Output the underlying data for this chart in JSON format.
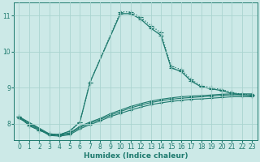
{
  "xlabel": "Humidex (Indice chaleur)",
  "xlim": [
    -0.5,
    23.5
  ],
  "ylim": [
    7.55,
    11.35
  ],
  "yticks": [
    8,
    9,
    10,
    11
  ],
  "xticks": [
    0,
    1,
    2,
    3,
    4,
    5,
    6,
    7,
    8,
    9,
    10,
    11,
    12,
    13,
    14,
    15,
    16,
    17,
    18,
    19,
    20,
    21,
    22,
    23
  ],
  "bg_color": "#cce9e7",
  "grid_color": "#aad4d0",
  "line_color": "#1e7a6e",
  "series": [
    {
      "x": [
        0,
        1,
        2,
        3,
        4,
        5,
        6,
        7,
        10,
        11,
        12,
        13,
        14,
        15,
        16,
        17,
        18,
        19,
        20,
        21,
        22,
        23
      ],
      "y": [
        8.2,
        7.95,
        7.82,
        7.72,
        7.7,
        7.8,
        8.05,
        9.15,
        11.1,
        11.1,
        10.95,
        10.72,
        10.52,
        9.6,
        9.5,
        9.22,
        9.05,
        9.0,
        8.95,
        8.87,
        8.82,
        8.8
      ],
      "marker": "+",
      "markersize": 4,
      "linewidth": 0.9,
      "linestyle": ":"
    },
    {
      "x": [
        0,
        1,
        2,
        3,
        4,
        5,
        6,
        7,
        10,
        11,
        12,
        13,
        14,
        15,
        16,
        17,
        18,
        19,
        20,
        21,
        22,
        23
      ],
      "y": [
        8.2,
        7.95,
        7.82,
        7.72,
        7.7,
        7.8,
        8.05,
        9.15,
        11.05,
        11.05,
        10.9,
        10.65,
        10.45,
        9.55,
        9.45,
        9.18,
        9.02,
        8.97,
        8.92,
        8.84,
        8.8,
        8.78
      ],
      "marker": "+",
      "markersize": 4,
      "linewidth": 0.9,
      "linestyle": "-"
    },
    {
      "x": [
        0,
        3,
        4,
        5,
        6,
        7,
        8,
        9,
        10,
        11,
        12,
        13,
        14,
        15,
        16,
        17,
        18,
        19,
        20,
        21,
        22,
        23
      ],
      "y": [
        8.2,
        7.72,
        7.7,
        7.75,
        7.93,
        8.05,
        8.15,
        8.28,
        8.38,
        8.48,
        8.56,
        8.63,
        8.68,
        8.72,
        8.75,
        8.77,
        8.78,
        8.8,
        8.82,
        8.83,
        8.83,
        8.83
      ],
      "marker": "+",
      "markersize": 3,
      "linewidth": 0.8,
      "linestyle": "-"
    },
    {
      "x": [
        0,
        3,
        4,
        5,
        6,
        7,
        8,
        9,
        10,
        11,
        12,
        13,
        14,
        15,
        16,
        17,
        18,
        19,
        20,
        21,
        22,
        23
      ],
      "y": [
        8.18,
        7.7,
        7.68,
        7.73,
        7.9,
        8.02,
        8.12,
        8.24,
        8.34,
        8.44,
        8.52,
        8.59,
        8.64,
        8.68,
        8.71,
        8.73,
        8.75,
        8.77,
        8.79,
        8.8,
        8.8,
        8.8
      ],
      "marker": "+",
      "markersize": 3,
      "linewidth": 0.8,
      "linestyle": "-"
    },
    {
      "x": [
        0,
        3,
        4,
        5,
        6,
        7,
        8,
        9,
        10,
        11,
        12,
        13,
        14,
        15,
        16,
        17,
        18,
        19,
        20,
        21,
        22,
        23
      ],
      "y": [
        8.15,
        7.68,
        7.66,
        7.7,
        7.86,
        7.98,
        8.08,
        8.2,
        8.29,
        8.38,
        8.46,
        8.53,
        8.58,
        8.62,
        8.65,
        8.68,
        8.69,
        8.71,
        8.73,
        8.75,
        8.75,
        8.75
      ],
      "marker": "+",
      "markersize": 3,
      "linewidth": 0.8,
      "linestyle": "-"
    }
  ]
}
